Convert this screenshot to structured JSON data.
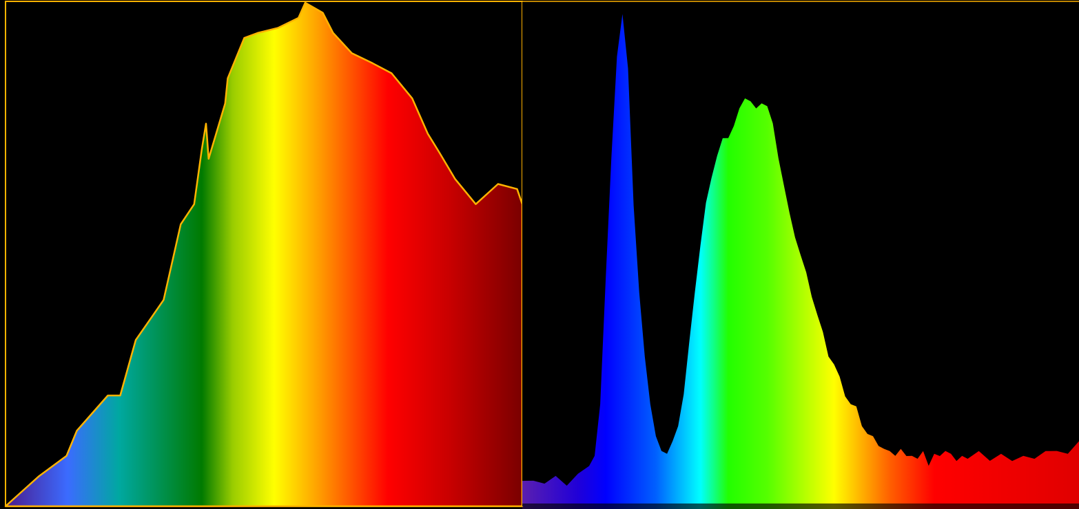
{
  "chart_data": [
    {
      "type": "area",
      "title": "",
      "xlabel": "",
      "ylabel": "",
      "grid": false,
      "legend": "none",
      "outline_color": "#FFB300",
      "xlim": [
        0,
        1
      ],
      "ylim": [
        0,
        1
      ],
      "x": [
        0.0,
        0.065,
        0.118,
        0.138,
        0.198,
        0.222,
        0.252,
        0.279,
        0.306,
        0.339,
        0.365,
        0.38,
        0.388,
        0.393,
        0.425,
        0.43,
        0.462,
        0.488,
        0.527,
        0.567,
        0.58,
        0.614,
        0.634,
        0.67,
        0.71,
        0.747,
        0.787,
        0.817,
        0.841,
        0.87,
        0.91,
        0.953,
        0.99,
        1.0
      ],
      "y": [
        0.0,
        0.06,
        0.1,
        0.15,
        0.22,
        0.22,
        0.33,
        0.37,
        0.41,
        0.56,
        0.6,
        0.71,
        0.76,
        0.69,
        0.8,
        0.85,
        0.93,
        0.94,
        0.95,
        0.97,
        1.0,
        0.98,
        0.94,
        0.9,
        0.88,
        0.86,
        0.81,
        0.74,
        0.7,
        0.65,
        0.6,
        0.64,
        0.63,
        0.6
      ],
      "gradient_stops": [
        {
          "offset": 0.0,
          "color": "#4B1B8C"
        },
        {
          "offset": 0.12,
          "color": "#3B6BFF"
        },
        {
          "offset": 0.22,
          "color": "#00A8A0"
        },
        {
          "offset": 0.38,
          "color": "#007A00"
        },
        {
          "offset": 0.44,
          "color": "#9ACD00"
        },
        {
          "offset": 0.52,
          "color": "#FFFF00"
        },
        {
          "offset": 0.6,
          "color": "#FFA500"
        },
        {
          "offset": 0.74,
          "color": "#FF0000"
        },
        {
          "offset": 0.86,
          "color": "#C80000"
        },
        {
          "offset": 1.0,
          "color": "#7A0000"
        }
      ]
    },
    {
      "type": "area",
      "title": "",
      "xlabel": "",
      "ylabel": "",
      "grid": false,
      "legend": "none",
      "xlim": [
        0,
        1
      ],
      "ylim": [
        0,
        1
      ],
      "x": [
        0.0,
        0.02,
        0.04,
        0.06,
        0.08,
        0.1,
        0.12,
        0.13,
        0.14,
        0.15,
        0.16,
        0.17,
        0.18,
        0.19,
        0.2,
        0.21,
        0.22,
        0.23,
        0.24,
        0.25,
        0.26,
        0.27,
        0.28,
        0.29,
        0.3,
        0.31,
        0.32,
        0.33,
        0.34,
        0.35,
        0.36,
        0.37,
        0.38,
        0.39,
        0.4,
        0.41,
        0.42,
        0.43,
        0.44,
        0.45,
        0.46,
        0.47,
        0.48,
        0.49,
        0.5,
        0.51,
        0.52,
        0.53,
        0.54,
        0.55,
        0.56,
        0.57,
        0.58,
        0.59,
        0.6,
        0.61,
        0.62,
        0.63,
        0.64,
        0.65,
        0.66,
        0.67,
        0.68,
        0.69,
        0.7,
        0.71,
        0.72,
        0.73,
        0.74,
        0.75,
        0.76,
        0.77,
        0.78,
        0.79,
        0.8,
        0.82,
        0.84,
        0.86,
        0.88,
        0.9,
        0.92,
        0.94,
        0.96,
        0.98,
        1.0
      ],
      "y": [
        0.04,
        0.05,
        0.04,
        0.05,
        0.04,
        0.06,
        0.07,
        0.1,
        0.2,
        0.45,
        0.7,
        0.9,
        0.98,
        0.88,
        0.6,
        0.42,
        0.3,
        0.2,
        0.13,
        0.11,
        0.1,
        0.12,
        0.16,
        0.22,
        0.32,
        0.43,
        0.52,
        0.6,
        0.66,
        0.7,
        0.73,
        0.74,
        0.76,
        0.79,
        0.82,
        0.81,
        0.79,
        0.81,
        0.8,
        0.76,
        0.7,
        0.64,
        0.58,
        0.54,
        0.5,
        0.46,
        0.42,
        0.38,
        0.34,
        0.3,
        0.28,
        0.25,
        0.22,
        0.2,
        0.19,
        0.16,
        0.14,
        0.13,
        0.12,
        0.11,
        0.1,
        0.1,
        0.11,
        0.09,
        0.1,
        0.09,
        0.1,
        0.08,
        0.1,
        0.09,
        0.11,
        0.1,
        0.08,
        0.1,
        0.09,
        0.1,
        0.09,
        0.1,
        0.08,
        0.1,
        0.09,
        0.1,
        0.11,
        0.1,
        0.12
      ],
      "gradient_stops": [
        {
          "offset": 0.0,
          "color": "#5A1FB0"
        },
        {
          "offset": 0.1,
          "color": "#2000D8"
        },
        {
          "offset": 0.15,
          "color": "#0000FF"
        },
        {
          "offset": 0.24,
          "color": "#0060FF"
        },
        {
          "offset": 0.32,
          "color": "#00FFFF"
        },
        {
          "offset": 0.37,
          "color": "#22FF00"
        },
        {
          "offset": 0.44,
          "color": "#55FF00"
        },
        {
          "offset": 0.56,
          "color": "#FFFF00"
        },
        {
          "offset": 0.66,
          "color": "#FF6000"
        },
        {
          "offset": 0.74,
          "color": "#FF0000"
        },
        {
          "offset": 1.0,
          "color": "#E00000"
        }
      ]
    }
  ]
}
